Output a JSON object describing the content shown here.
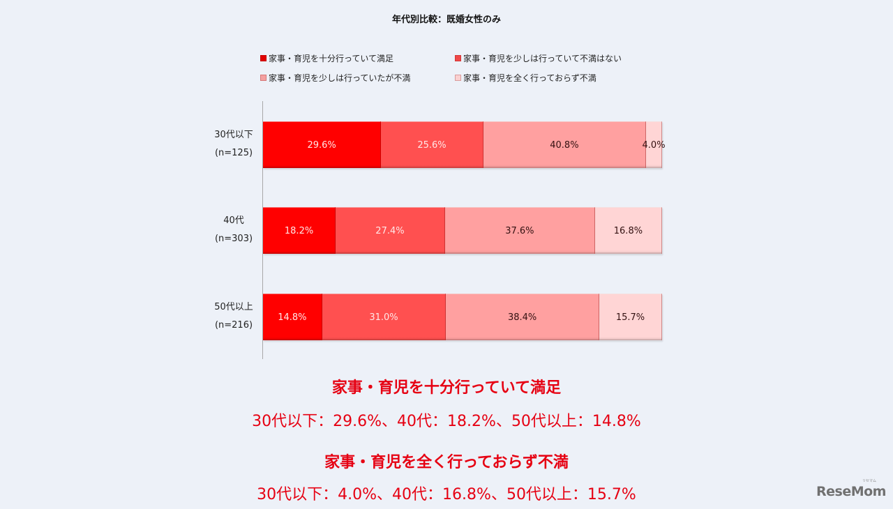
{
  "title": "年代別比較：既婚女性のみ",
  "legend": [
    {
      "label": "家事・育児を十分行っていて満足",
      "color": "#ff0000"
    },
    {
      "label": "家事・育児を少しは行っていて不満はない",
      "color": "#ff5050"
    },
    {
      "label": "家事・育児を少しは行っていたが不満",
      "color": "#ffa0a0"
    },
    {
      "label": "家事・育児を全く行っておらず不満",
      "color": "#ffd5d5"
    }
  ],
  "chart_data": {
    "type": "bar",
    "orientation": "horizontal",
    "stacked": true,
    "percent_stacked": true,
    "title": "年代別比較：既婚女性のみ",
    "categories": [
      "30代以下 (n=125)",
      "40代 (n=303)",
      "50代以上 (n=216)"
    ],
    "category_labels": [
      {
        "line1": "30代以下",
        "line2": "(n=125)"
      },
      {
        "line1": "40代",
        "line2": "(n=303)"
      },
      {
        "line1": "50代以上",
        "line2": "(n=216)"
      }
    ],
    "series": [
      {
        "name": "家事・育児を十分行っていて満足",
        "values": [
          29.6,
          18.2,
          14.8
        ],
        "labels": [
          "29.6%",
          "18.2%",
          "14.8%"
        ],
        "color": "#ff0000"
      },
      {
        "name": "家事・育児を少しは行っていて不満はない",
        "values": [
          25.6,
          27.4,
          31.0
        ],
        "labels": [
          "25.6%",
          "27.4%",
          "31.0%"
        ],
        "color": "#ff5050"
      },
      {
        "name": "家事・育児を少しは行っていたが不満",
        "values": [
          40.8,
          37.6,
          38.4
        ],
        "labels": [
          "40.8%",
          "37.6%",
          "38.4%"
        ],
        "color": "#ffa0a0"
      },
      {
        "name": "家事・育児を全く行っておらず不満",
        "values": [
          4.0,
          16.8,
          15.7
        ],
        "labels": [
          "4.0%",
          "16.8%",
          "15.7%"
        ],
        "color": "#ffd5d5"
      }
    ],
    "xlim": [
      0,
      100
    ],
    "grid": false,
    "legend_position": "top"
  },
  "summaries": [
    {
      "heading": "家事・育児を十分行っていて満足",
      "values": "30代以下：29.6%、40代：18.2%、50代以上：14.8%"
    },
    {
      "heading": "家事・育児を全く行っておらず不満",
      "values": "30代以下：4.0%、40代：16.8%、50代以上：15.7%"
    }
  ],
  "logo": {
    "text": "ReseMom",
    "ruby": "リセマム"
  }
}
